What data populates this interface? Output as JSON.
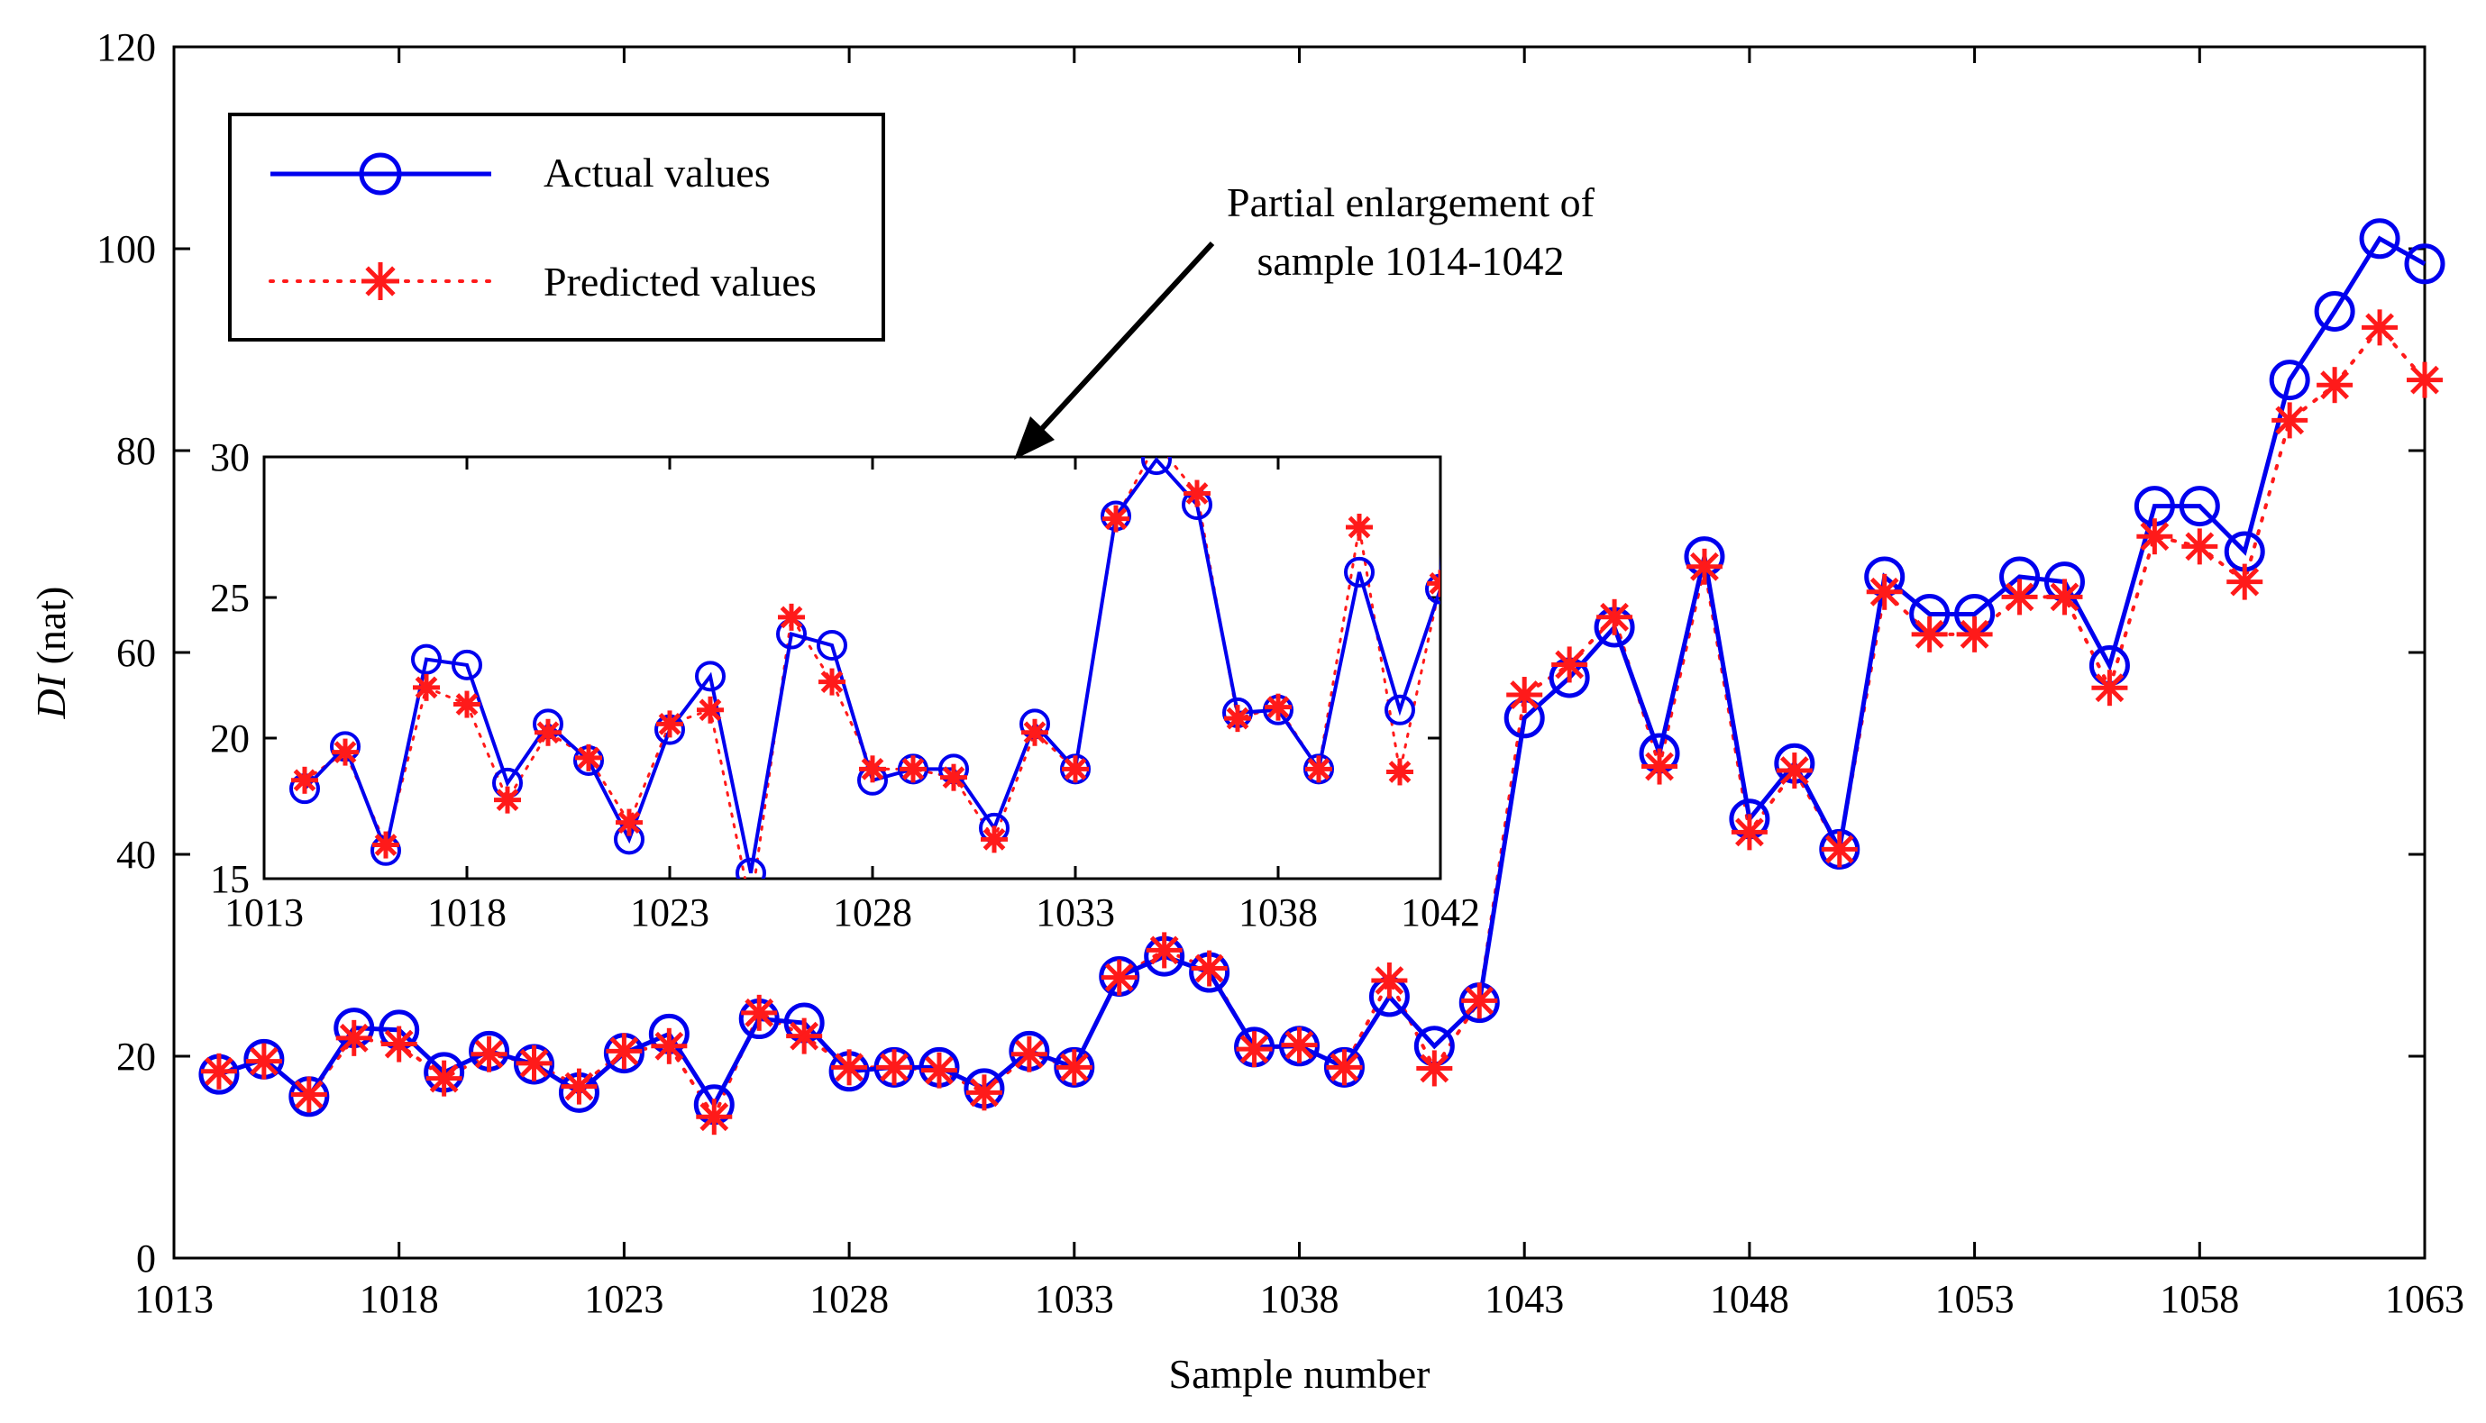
{
  "colors": {
    "actual": "#0000ee",
    "predicted": "#ff1a1a",
    "axis": "#000000",
    "background": "#ffffff"
  },
  "chart_data": {
    "type": "line",
    "xlabel": "Sample number",
    "ylabel": {
      "italic": "DI",
      "rest": " (nat)"
    },
    "xlim": [
      1013,
      1063
    ],
    "ylim": [
      0,
      120
    ],
    "xticks": [
      "1013",
      "1018",
      "1023",
      "1028",
      "1033",
      "1038",
      "1043",
      "1048",
      "1053",
      "1058",
      "1063"
    ],
    "yticks": [
      "0",
      "20",
      "40",
      "60",
      "80",
      "100",
      "120"
    ],
    "grid": false,
    "legend_position": "top-left",
    "x": [
      1014,
      1015,
      1016,
      1017,
      1018,
      1019,
      1020,
      1021,
      1022,
      1023,
      1024,
      1025,
      1026,
      1027,
      1028,
      1029,
      1030,
      1031,
      1032,
      1033,
      1034,
      1035,
      1036,
      1037,
      1038,
      1039,
      1040,
      1041,
      1042,
      1043,
      1044,
      1045,
      1046,
      1047,
      1048,
      1049,
      1050,
      1051,
      1052,
      1053,
      1054,
      1055,
      1056,
      1057,
      1058,
      1059,
      1060,
      1061,
      1062,
      1063
    ],
    "series": [
      {
        "name": "Actual values",
        "style": "solid line, circle markers",
        "values": [
          18.2,
          19.7,
          16.0,
          22.8,
          22.6,
          18.4,
          20.5,
          19.2,
          16.4,
          20.3,
          22.2,
          15.2,
          23.7,
          23.3,
          18.5,
          18.9,
          18.9,
          16.8,
          20.5,
          18.9,
          27.9,
          29.9,
          28.3,
          20.9,
          21.0,
          18.9,
          25.9,
          21.0,
          25.3,
          53.5,
          57.5,
          62.5,
          50.0,
          69.5,
          43.5,
          49.0,
          40.5,
          67.5,
          63.8,
          63.8,
          67.5,
          67.0,
          58.7,
          74.5,
          74.5,
          70.0,
          87.0,
          93.8,
          101.0,
          98.5
        ]
      },
      {
        "name": "Predicted values",
        "style": "dotted line, asterisk markers",
        "values": [
          18.5,
          19.5,
          16.2,
          21.8,
          21.2,
          17.8,
          20.2,
          19.3,
          17.0,
          20.5,
          21.0,
          14.0,
          24.3,
          22.0,
          18.9,
          18.9,
          18.6,
          16.4,
          20.2,
          18.9,
          27.8,
          30.5,
          28.7,
          20.7,
          21.1,
          18.9,
          27.5,
          18.8,
          25.5,
          55.8,
          58.8,
          63.5,
          48.7,
          68.5,
          42.2,
          48.3,
          40.5,
          66.0,
          61.8,
          61.8,
          65.5,
          65.5,
          56.5,
          71.5,
          70.5,
          67.0,
          83.0,
          86.5,
          92.2,
          87.0
        ]
      }
    ],
    "inset": {
      "title": "Partial enlargement of sample 1014-1042",
      "annotation_lines": [
        "Partial enlargement of",
        "sample 1014-1042"
      ],
      "xlim": [
        1013,
        1042
      ],
      "ylim": [
        15,
        30
      ],
      "xticks": [
        "1013",
        "1018",
        "1023",
        "1028",
        "1033",
        "1038",
        "1042"
      ],
      "yticks": [
        "15",
        "20",
        "25",
        "30"
      ]
    }
  }
}
